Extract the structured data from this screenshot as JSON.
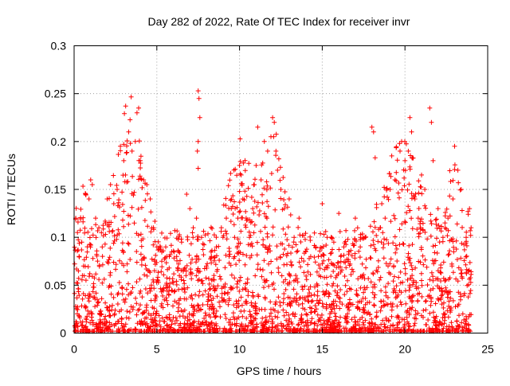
{
  "chart_data": {
    "type": "scatter",
    "title": "Day 282 of 2022, Rate Of TEC Index for receiver invr",
    "xlabel": "GPS time / hours",
    "ylabel": "ROTI / TECUs",
    "xlim": [
      0,
      25
    ],
    "ylim": [
      0,
      0.3
    ],
    "x_ticks": [
      0,
      5,
      10,
      15,
      20,
      25
    ],
    "x_tick_labels": [
      "0",
      "5",
      "10",
      "15",
      "20",
      "25"
    ],
    "y_ticks": [
      0,
      0.05,
      0.1,
      0.15,
      0.2,
      0.25,
      0.3
    ],
    "y_tick_labels": [
      "0",
      "0.05",
      "0.1",
      "0.15",
      "0.2",
      "0.25",
      "0.3"
    ],
    "grid": true,
    "legend": "none",
    "marker": "+",
    "color": "#ff0000",
    "series": [
      {
        "points": [
          [
            0.1,
            0.12
          ],
          [
            0.2,
            0.105
          ],
          [
            0.3,
            0.08
          ],
          [
            0.5,
            0.06
          ],
          [
            0.7,
            0.145
          ],
          [
            0.9,
            0.14
          ],
          [
            1.0,
            0.16
          ],
          [
            1.1,
            0.155
          ],
          [
            1.3,
            0.12
          ],
          [
            1.5,
            0.11
          ],
          [
            1.7,
            0.09
          ],
          [
            1.9,
            0.115
          ],
          [
            2.0,
            0.14
          ],
          [
            2.2,
            0.155
          ],
          [
            2.4,
            0.135
          ],
          [
            2.6,
            0.15
          ],
          [
            2.8,
            0.195
          ],
          [
            3.0,
            0.18
          ],
          [
            3.1,
            0.165
          ],
          [
            3.3,
            0.21
          ],
          [
            3.5,
            0.19
          ],
          [
            3.7,
            0.2
          ],
          [
            3.8,
            0.23
          ],
          [
            3.9,
            0.235
          ],
          [
            4.0,
            0.18
          ],
          [
            4.2,
            0.16
          ],
          [
            4.4,
            0.155
          ],
          [
            4.6,
            0.14
          ],
          [
            4.8,
            0.11
          ],
          [
            5.0,
            0.09
          ],
          [
            5.3,
            0.075
          ],
          [
            5.6,
            0.08
          ],
          [
            5.9,
            0.085
          ],
          [
            6.2,
            0.08
          ],
          [
            6.5,
            0.095
          ],
          [
            6.8,
            0.145
          ],
          [
            7.0,
            0.13
          ],
          [
            7.2,
            0.11
          ],
          [
            7.4,
            0.12
          ],
          [
            7.5,
            0.253
          ],
          [
            7.55,
            0.245
          ],
          [
            7.6,
            0.225
          ],
          [
            7.5,
            0.2
          ],
          [
            7.45,
            0.19
          ],
          [
            7.5,
            0.172
          ],
          [
            7.7,
            0.1
          ],
          [
            8.0,
            0.07
          ],
          [
            8.3,
            0.08
          ],
          [
            8.6,
            0.09
          ],
          [
            8.9,
            0.11
          ],
          [
            9.2,
            0.12
          ],
          [
            9.5,
            0.13
          ],
          [
            9.7,
            0.1
          ],
          [
            9.9,
            0.12
          ],
          [
            10.0,
            0.175
          ],
          [
            10.1,
            0.165
          ],
          [
            10.2,
            0.14
          ],
          [
            10.4,
            0.12
          ],
          [
            10.6,
            0.1
          ],
          [
            10.8,
            0.13
          ],
          [
            11.0,
            0.175
          ],
          [
            11.1,
            0.215
          ],
          [
            11.3,
            0.16
          ],
          [
            11.5,
            0.2
          ],
          [
            11.7,
            0.19
          ],
          [
            11.9,
            0.205
          ],
          [
            12.0,
            0.225
          ],
          [
            12.1,
            0.22
          ],
          [
            12.2,
            0.19
          ],
          [
            12.3,
            0.17
          ],
          [
            12.5,
            0.15
          ],
          [
            12.7,
            0.13
          ],
          [
            13.0,
            0.14
          ],
          [
            13.3,
            0.1
          ],
          [
            13.6,
            0.12
          ],
          [
            14.0,
            0.085
          ],
          [
            14.3,
            0.08
          ],
          [
            14.6,
            0.09
          ],
          [
            15.0,
            0.135
          ],
          [
            15.3,
            0.1
          ],
          [
            15.7,
            0.095
          ],
          [
            16.0,
            0.125
          ],
          [
            16.3,
            0.09
          ],
          [
            16.6,
            0.085
          ],
          [
            17.0,
            0.12
          ],
          [
            17.3,
            0.09
          ],
          [
            17.6,
            0.1
          ],
          [
            18.0,
            0.215
          ],
          [
            18.1,
            0.21
          ],
          [
            18.2,
            0.183
          ],
          [
            18.5,
            0.11
          ],
          [
            18.8,
            0.12
          ],
          [
            19.1,
            0.15
          ],
          [
            19.4,
            0.16
          ],
          [
            19.7,
            0.19
          ],
          [
            19.8,
            0.2
          ],
          [
            20.0,
            0.18
          ],
          [
            20.2,
            0.19
          ],
          [
            20.3,
            0.225
          ],
          [
            20.4,
            0.21
          ],
          [
            20.6,
            0.14
          ],
          [
            20.8,
            0.12
          ],
          [
            21.0,
            0.165
          ],
          [
            21.2,
            0.15
          ],
          [
            21.5,
            0.235
          ],
          [
            21.6,
            0.22
          ],
          [
            21.7,
            0.18
          ],
          [
            22.0,
            0.13
          ],
          [
            22.3,
            0.1
          ],
          [
            22.6,
            0.12
          ],
          [
            22.9,
            0.14
          ],
          [
            23.0,
            0.195
          ],
          [
            23.2,
            0.17
          ],
          [
            23.4,
            0.15
          ],
          [
            23.7,
            0.1
          ],
          [
            23.9,
            0.13
          ],
          [
            24.0,
            0.11
          ]
        ]
      }
    ]
  }
}
